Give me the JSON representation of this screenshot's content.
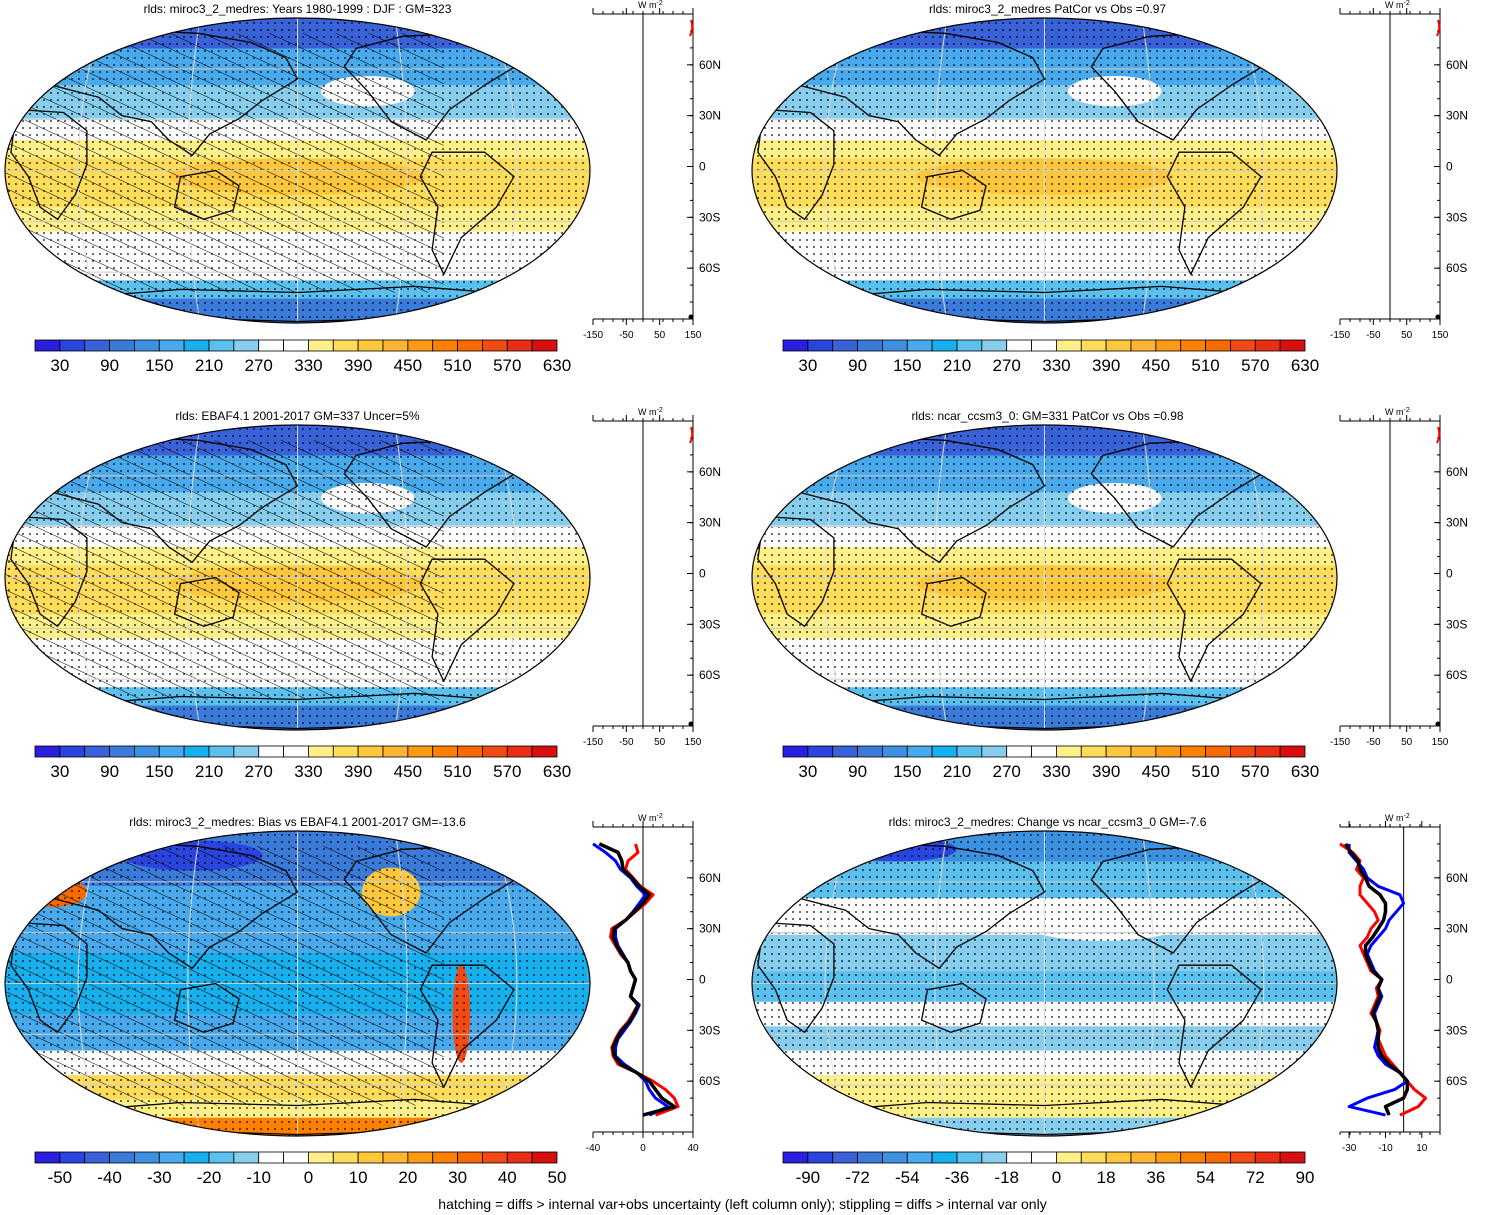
{
  "footer": "hatching = diffs > internal var+obs uncertainty (left column only); stippling = diffs > internal var only",
  "lat_labels": [
    "60N",
    "30N",
    "0",
    "30S",
    "60S"
  ],
  "unit": "W m",
  "unit_exp": "-2",
  "colors": {
    "colorbar": [
      "#2a1ee0",
      "#2a44e0",
      "#3a62d8",
      "#3a7ad8",
      "#3c92e0",
      "#48aaec",
      "#16b0ee",
      "#5cc0ee",
      "#86cdee",
      "#ffffff",
      "#ffffff",
      "#fff08a",
      "#ffdc5a",
      "#ffc83c",
      "#ffb432",
      "#ff9a14",
      "#ff8000",
      "#f76a00",
      "#f24a14",
      "#e82e14",
      "#d80f0f"
    ],
    "land": "#000000",
    "zonal_model": "#ff0000",
    "zonal_obs": "#0000ff",
    "zonal_mean": "#000000"
  },
  "chart_data": [
    {
      "type": "heatmap",
      "title": "rlds: miroc3_2_medres: Years 1980-1999 : DJF : GM=323",
      "colorbar_labels": [
        "30",
        "90",
        "150",
        "210",
        "270",
        "330",
        "390",
        "450",
        "510",
        "570",
        "630"
      ],
      "zonal_ticks": [
        "-150",
        "-50",
        "50",
        "150"
      ],
      "zonal_xlim": [
        -150,
        150
      ],
      "pattern": "field-hatch"
    },
    {
      "type": "heatmap",
      "title": "rlds: miroc3_2_medres PatCor vs Obs =0.97",
      "colorbar_labels": [
        "30",
        "90",
        "150",
        "210",
        "270",
        "330",
        "390",
        "450",
        "510",
        "570",
        "630"
      ],
      "zonal_ticks": [
        "-150",
        "-50",
        "50",
        "150"
      ],
      "zonal_xlim": [
        -150,
        150
      ],
      "pattern": "field"
    },
    {
      "type": "heatmap",
      "title": "rlds: EBAF4.1 2001-2017 GM=337 Uncer=5%",
      "colorbar_labels": [
        "30",
        "90",
        "150",
        "210",
        "270",
        "330",
        "390",
        "450",
        "510",
        "570",
        "630"
      ],
      "zonal_ticks": [
        "-150",
        "-50",
        "50",
        "150"
      ],
      "zonal_xlim": [
        -150,
        150
      ],
      "pattern": "field-hatch"
    },
    {
      "type": "heatmap",
      "title": "rlds: ncar_ccsm3_0: GM=331 PatCor vs Obs =0.98",
      "colorbar_labels": [
        "30",
        "90",
        "150",
        "210",
        "270",
        "330",
        "390",
        "450",
        "510",
        "570",
        "630"
      ],
      "zonal_ticks": [
        "-150",
        "-50",
        "50",
        "150"
      ],
      "zonal_xlim": [
        -150,
        150
      ],
      "pattern": "field"
    },
    {
      "type": "heatmap",
      "title": "rlds: miroc3_2_medres: Bias vs EBAF4.1 2001-2017 GM=-13.6",
      "colorbar_labels": [
        "-50",
        "-40",
        "-30",
        "-20",
        "-10",
        "0",
        "10",
        "20",
        "30",
        "40",
        "50"
      ],
      "zonal_ticks": [
        "-40",
        "0",
        "40"
      ],
      "zonal_xlim": [
        -40,
        40
      ],
      "pattern": "bias",
      "zonal_profile": {
        "lat": [
          -80,
          -75,
          -70,
          -65,
          -60,
          -55,
          -50,
          -45,
          -40,
          -35,
          -30,
          -25,
          -20,
          -15,
          -10,
          -5,
          0,
          5,
          10,
          15,
          20,
          25,
          30,
          35,
          40,
          45,
          50,
          55,
          60,
          65,
          70,
          75,
          80
        ],
        "model": [
          10,
          28,
          25,
          18,
          8,
          -5,
          -20,
          -24,
          -25,
          -22,
          -18,
          -12,
          -8,
          -4,
          -10,
          -8,
          -6,
          -10,
          -12,
          -18,
          -22,
          -26,
          -25,
          -14,
          -6,
          2,
          8,
          -2,
          -8,
          -14,
          -12,
          -4,
          -6
        ],
        "obs": [
          5,
          20,
          10,
          5,
          2,
          -5,
          -15,
          -22,
          -22,
          -20,
          -15,
          -10,
          -6,
          -3,
          -10,
          -8,
          -6,
          -10,
          -12,
          -16,
          -20,
          -22,
          -22,
          -14,
          -8,
          -3,
          2,
          -5,
          -10,
          -18,
          -22,
          -30,
          -40
        ],
        "mean": [
          0,
          25,
          15,
          10,
          5,
          -5,
          -18,
          -23,
          -24,
          -21,
          -17,
          -11,
          -7,
          -4,
          -10,
          -8,
          -6,
          -10,
          -12,
          -17,
          -21,
          -24,
          -23,
          -14,
          -7,
          0,
          5,
          -3,
          -9,
          -16,
          -17,
          -20,
          -35
        ]
      }
    },
    {
      "type": "heatmap",
      "title": "rlds: miroc3_2_medres: Change vs ncar_ccsm3_0 GM=-7.6",
      "colorbar_labels": [
        "-90",
        "-72",
        "-54",
        "-36",
        "-18",
        "0",
        "18",
        "36",
        "54",
        "72",
        "90"
      ],
      "zonal_ticks": [
        "-30",
        "-10",
        "10"
      ],
      "zonal_xlim": [
        -35,
        20
      ],
      "pattern": "change",
      "zonal_profile": {
        "lat": [
          -80,
          -75,
          -70,
          -65,
          -60,
          -55,
          -50,
          -45,
          -40,
          -35,
          -30,
          -25,
          -20,
          -15,
          -10,
          -5,
          0,
          5,
          10,
          15,
          20,
          25,
          30,
          35,
          40,
          45,
          50,
          55,
          60,
          65,
          70,
          75,
          80
        ],
        "model": [
          -2,
          8,
          12,
          6,
          2,
          -2,
          -6,
          -10,
          -12,
          -14,
          -13,
          -15,
          -18,
          -16,
          -14,
          -15,
          -12,
          -18,
          -20,
          -22,
          -24,
          -20,
          -18,
          -14,
          -16,
          -20,
          -24,
          -24,
          -22,
          -26,
          -24,
          -28,
          -35
        ],
        "obs": [
          -10,
          -30,
          -20,
          -5,
          2,
          -2,
          -10,
          -14,
          -16,
          -15,
          -14,
          -15,
          -16,
          -14,
          -12,
          -14,
          -12,
          -16,
          -18,
          -20,
          -18,
          -14,
          -10,
          -8,
          -4,
          0,
          -2,
          -14,
          -20,
          -22,
          -26,
          -30,
          -30
        ],
        "mean": [
          -8,
          -10,
          0,
          2,
          2,
          -2,
          -8,
          -12,
          -14,
          -14,
          -14,
          -15,
          -17,
          -15,
          -13,
          -14,
          -12,
          -17,
          -19,
          -21,
          -21,
          -17,
          -14,
          -11,
          -10,
          -10,
          -13,
          -19,
          -21,
          -24,
          -25,
          -29,
          -32
        ]
      }
    }
  ]
}
